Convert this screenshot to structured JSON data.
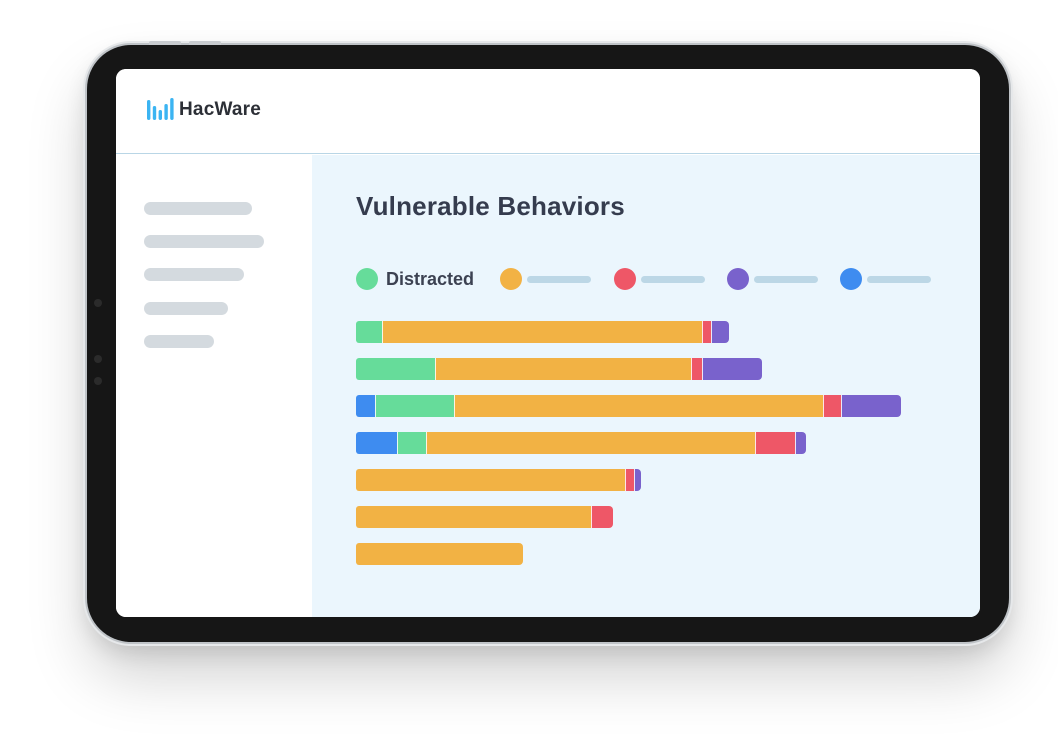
{
  "brand": {
    "name": "HacWare"
  },
  "page": {
    "title": "Vulnerable Behaviors"
  },
  "colors": {
    "green": "#66dc9a",
    "orange": "#f2b244",
    "red": "#ee5767",
    "purple": "#7962cc",
    "blue": "#3e8cf0",
    "logo_blue": "#3bb4f2"
  },
  "sidebar": {
    "items": [
      "",
      "",
      "",
      "",
      ""
    ]
  },
  "chart_data": {
    "type": "bar",
    "orientation": "horizontal",
    "stacked": true,
    "title": "Vulnerable Behaviors",
    "categories": [
      "",
      "",
      "",
      "",
      "",
      "",
      ""
    ],
    "series": [
      {
        "name": "Distracted",
        "color": "#66dc9a",
        "values": [
          26,
          79,
          79,
          29,
          0,
          0,
          0
        ]
      },
      {
        "color": "#f2b244",
        "values": [
          320,
          256,
          369,
          329,
          269,
          235,
          167
        ]
      },
      {
        "color": "#ee5767",
        "values": [
          9,
          11,
          18,
          40,
          9,
          22,
          0
        ]
      },
      {
        "color": "#7962cc",
        "values": [
          18,
          60,
          60,
          11,
          7,
          0,
          0
        ]
      },
      {
        "color": "#3e8cf0",
        "values": [
          0,
          0,
          19,
          41,
          0,
          0,
          0
        ]
      }
    ],
    "segment_order": [
      [
        "Distracted",
        1,
        2,
        3
      ],
      [
        "Distracted",
        1,
        2,
        3
      ],
      [
        4,
        "Distracted",
        1,
        2,
        3
      ],
      [
        4,
        "Distracted",
        1,
        2,
        3
      ],
      [
        1,
        2,
        3
      ],
      [
        1,
        2
      ],
      [
        1
      ]
    ],
    "legend": [
      "Distracted",
      "",
      "",
      "",
      ""
    ],
    "legend_placement": "top",
    "grid": false,
    "xlim": [
      0,
      600
    ]
  }
}
